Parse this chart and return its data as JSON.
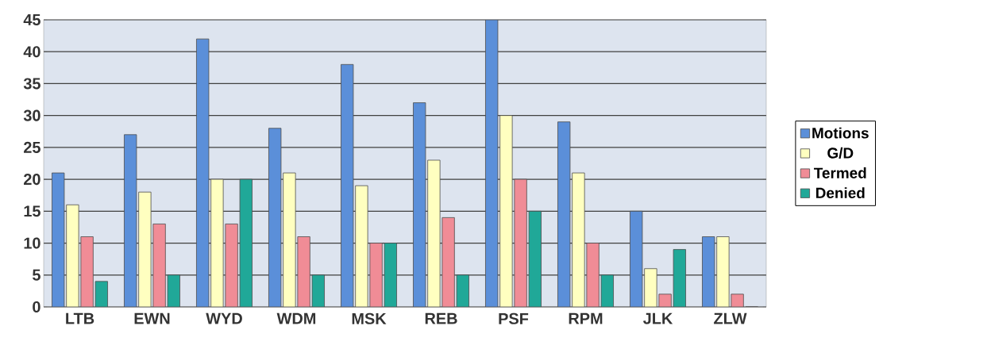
{
  "chart_data": {
    "type": "bar",
    "categories": [
      "LTB",
      "EWN",
      "WYD",
      "WDM",
      "MSK",
      "REB",
      "PSF",
      "RPM",
      "JLK",
      "ZLW"
    ],
    "series": [
      {
        "name": "Motions",
        "color": "#5b8fd9",
        "values": [
          21,
          27,
          42,
          28,
          38,
          32,
          45,
          29,
          15,
          11
        ]
      },
      {
        "name": "G/D",
        "color": "#ffffc0",
        "values": [
          16,
          18,
          20,
          21,
          19,
          23,
          30,
          21,
          6,
          11
        ]
      },
      {
        "name": "Termed",
        "color": "#f08c96",
        "values": [
          11,
          13,
          13,
          11,
          10,
          14,
          20,
          10,
          2,
          2
        ]
      },
      {
        "name": "Denied",
        "color": "#20a898",
        "values": [
          4,
          5,
          20,
          5,
          10,
          5,
          15,
          5,
          9,
          0
        ]
      }
    ],
    "ylim": [
      0,
      45
    ],
    "yticks": [
      0,
      5,
      10,
      15,
      20,
      25,
      30,
      35,
      40,
      45
    ],
    "grid": "y",
    "legend": "right"
  }
}
